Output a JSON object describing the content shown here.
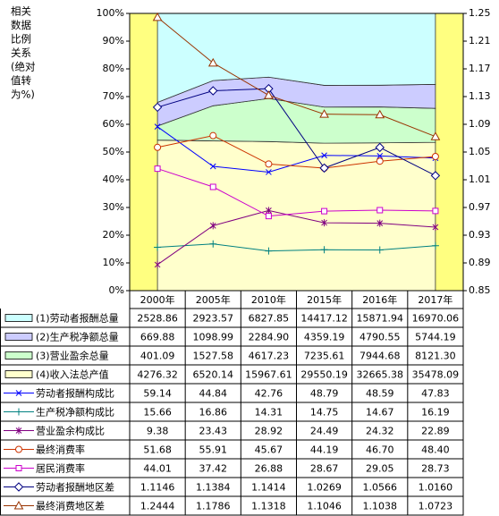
{
  "chart_data": {
    "type": "combo",
    "y_title_lines": [
      "相关",
      "数据",
      "比例",
      "关系",
      "(绝对",
      "值转",
      "为%)"
    ],
    "categories": [
      "2000年",
      "2005年",
      "2010年",
      "2015年",
      "2016年",
      "2017年"
    ],
    "ylim": [
      0,
      100
    ],
    "yticks": [
      {
        "value": 0,
        "label": "0%"
      },
      {
        "value": 10,
        "label": "10%"
      },
      {
        "value": 20,
        "label": "20%"
      },
      {
        "value": 30,
        "label": "30%"
      },
      {
        "value": 40,
        "label": "40%"
      },
      {
        "value": 50,
        "label": "50%"
      },
      {
        "value": 60,
        "label": "60%"
      },
      {
        "value": 70,
        "label": "70%"
      },
      {
        "value": 80,
        "label": "80%"
      },
      {
        "value": 90,
        "label": "90%"
      },
      {
        "value": 100,
        "label": "100%"
      }
    ],
    "y2lim": [
      0.85,
      1.25
    ],
    "y2ticks": [
      0.85,
      0.89,
      0.93,
      0.97,
      1.01,
      1.05,
      1.09,
      1.13,
      1.17,
      1.21,
      1.25
    ],
    "series": [
      {
        "name": "(1)劳动者报酬总量",
        "type": "area",
        "color": "#ccffff",
        "values": [
          2528.86,
          2923.57,
          6827.85,
          14417.12,
          15871.94,
          16970.06
        ],
        "value_labels": [
          "2528.86",
          "2923.57",
          "6827.85",
          "14417.12",
          "15871.94",
          "16970.06"
        ]
      },
      {
        "name": "(2)生产税净额总量",
        "type": "area",
        "color": "#ccccff",
        "values": [
          669.88,
          1098.99,
          2284.9,
          4359.19,
          4790.55,
          5744.19
        ],
        "value_labels": [
          "669.88",
          "1098.99",
          "2284.90",
          "4359.19",
          "4790.55",
          "5744.19"
        ]
      },
      {
        "name": "(3)营业盈余总量",
        "type": "area",
        "color": "#ccffcc",
        "values": [
          401.09,
          1527.58,
          4617.23,
          7235.61,
          7944.68,
          8121.3
        ],
        "value_labels": [
          "401.09",
          "1527.58",
          "4617.23",
          "7235.61",
          "7944.68",
          "8121.30"
        ]
      },
      {
        "name": "(4)收入法总产值",
        "type": "area",
        "color": "#ffffcc",
        "values": [
          4276.32,
          6520.14,
          15967.61,
          29550.19,
          32665.38,
          35478.09
        ],
        "value_labels": [
          "4276.32",
          "6520.14",
          "15967.61",
          "29550.19",
          "32665.38",
          "35478.09"
        ]
      },
      {
        "name": "劳动者报酬构成比",
        "type": "line",
        "marker": "x",
        "color": "#0000ff",
        "values": [
          59.14,
          44.84,
          42.76,
          48.79,
          48.59,
          47.83
        ],
        "value_labels": [
          "59.14",
          "44.84",
          "42.76",
          "48.79",
          "48.59",
          "47.83"
        ]
      },
      {
        "name": "生产税净额构成比",
        "type": "line",
        "marker": "+",
        "color": "#008080",
        "values": [
          15.66,
          16.86,
          14.31,
          14.75,
          14.67,
          16.19
        ],
        "value_labels": [
          "15.66",
          "16.86",
          "14.31",
          "14.75",
          "14.67",
          "16.19"
        ]
      },
      {
        "name": "营业盈余构成比",
        "type": "line",
        "marker": "*",
        "color": "#800080",
        "values": [
          9.38,
          23.43,
          28.92,
          24.49,
          24.32,
          22.89
        ],
        "value_labels": [
          "9.38",
          "23.43",
          "28.92",
          "24.49",
          "24.32",
          "22.89"
        ]
      },
      {
        "name": "最终消费率",
        "type": "line",
        "marker": "o",
        "color": "#cc3300",
        "values": [
          51.68,
          55.91,
          45.67,
          44.19,
          46.7,
          48.4
        ],
        "value_labels": [
          "51.68",
          "55.91",
          "45.67",
          "44.19",
          "46.70",
          "48.40"
        ]
      },
      {
        "name": "居民消费率",
        "type": "line",
        "marker": "s",
        "color": "#cc00cc",
        "values": [
          44.01,
          37.42,
          26.88,
          28.67,
          29.05,
          28.73
        ],
        "value_labels": [
          "44.01",
          "37.42",
          "26.88",
          "28.67",
          "29.05",
          "28.73"
        ]
      },
      {
        "name": "劳动者报酬地区差",
        "type": "line",
        "marker": "d",
        "axis": "y2",
        "color": "#000080",
        "values": [
          1.1146,
          1.1384,
          1.1414,
          1.0269,
          1.0566,
          1.016
        ],
        "value_labels": [
          "1.1146",
          "1.1384",
          "1.1414",
          "1.0269",
          "1.0566",
          "1.0160"
        ]
      },
      {
        "name": "最终消费地区差",
        "type": "line",
        "marker": "^",
        "axis": "y2",
        "color": "#993300",
        "values": [
          1.2444,
          1.1786,
          1.1318,
          1.1046,
          1.1038,
          1.0723
        ],
        "value_labels": [
          "1.2444",
          "1.1786",
          "1.1318",
          "1.1046",
          "1.1038",
          "1.0723"
        ]
      }
    ]
  }
}
